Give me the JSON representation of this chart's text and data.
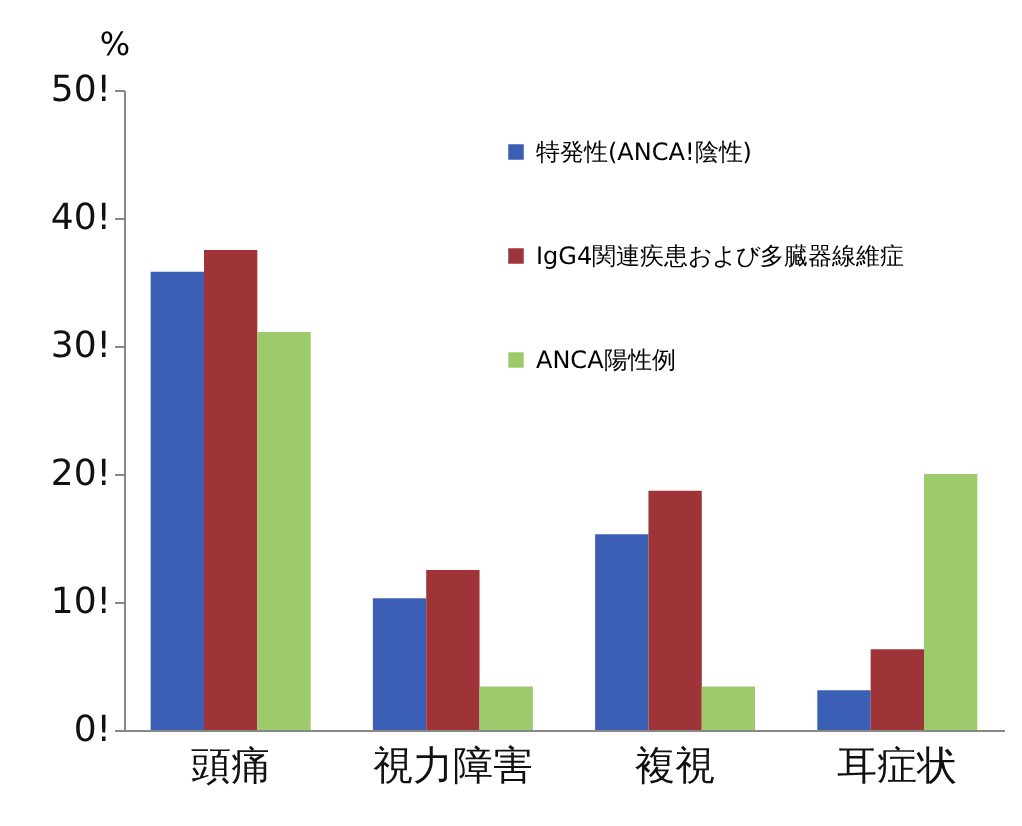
{
  "chart_data": {
    "type": "bar",
    "ylabel": "%",
    "categories": [
      "頭痛",
      "視力障害",
      "複視",
      "耳症状"
    ],
    "series": [
      {
        "name": "特発性(ANCA!陰性)",
        "color": "#3b5fb4",
        "values": [
          35.8,
          10.3,
          15.3,
          3.1
        ]
      },
      {
        "name": "IgG4関連疾患および多臓器線維症",
        "color": "#9e3438",
        "values": [
          37.5,
          12.5,
          18.7,
          6.3
        ]
      },
      {
        "name": "ANCA陽性例",
        "color": "#9dcb6b",
        "values": [
          31.1,
          3.4,
          3.4,
          20
        ]
      }
    ],
    "ylim": [
      0,
      50
    ],
    "yticks": [
      {
        "value": 0,
        "label": "0!"
      },
      {
        "value": 10,
        "label": "10!"
      },
      {
        "value": 20,
        "label": "20!"
      },
      {
        "value": 30,
        "label": "30!"
      },
      {
        "value": 40,
        "label": "40!"
      },
      {
        "value": 50,
        "label": "50!"
      }
    ],
    "grid": false,
    "legend": "top right"
  }
}
